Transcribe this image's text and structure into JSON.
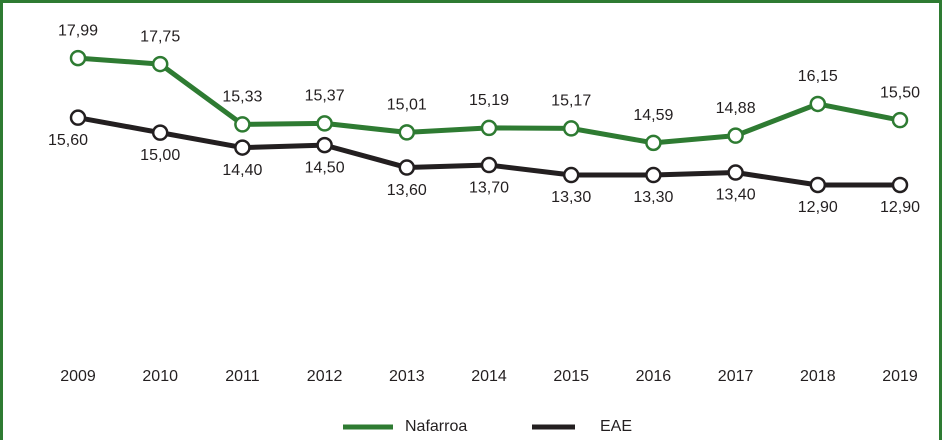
{
  "chart_data": {
    "type": "line",
    "categories": [
      "2009",
      "2010",
      "2011",
      "2012",
      "2013",
      "2014",
      "2015",
      "2016",
      "2017",
      "2018",
      "2019"
    ],
    "series": [
      {
        "name": "Nafarroa",
        "color": "#2e7b32",
        "values": [
          17.99,
          17.75,
          15.33,
          15.37,
          15.01,
          15.19,
          15.17,
          14.59,
          14.88,
          16.15,
          15.5
        ],
        "value_labels": [
          "17,99",
          "17,75",
          "15,33",
          "15,37",
          "15,01",
          "15,19",
          "15,17",
          "14,59",
          "14,88",
          "16,15",
          "15,50"
        ]
      },
      {
        "name": "EAE",
        "color": "#231f20",
        "values": [
          15.6,
          15.0,
          14.4,
          14.5,
          13.6,
          13.7,
          13.3,
          13.3,
          13.4,
          12.9,
          12.9
        ],
        "value_labels": [
          "15,60",
          "15,00",
          "14,40",
          "14,50",
          "13,60",
          "13,70",
          "13,30",
          "13,30",
          "13,40",
          "12,90",
          "12,90"
        ]
      }
    ],
    "ylim": [
      6,
      20
    ]
  }
}
